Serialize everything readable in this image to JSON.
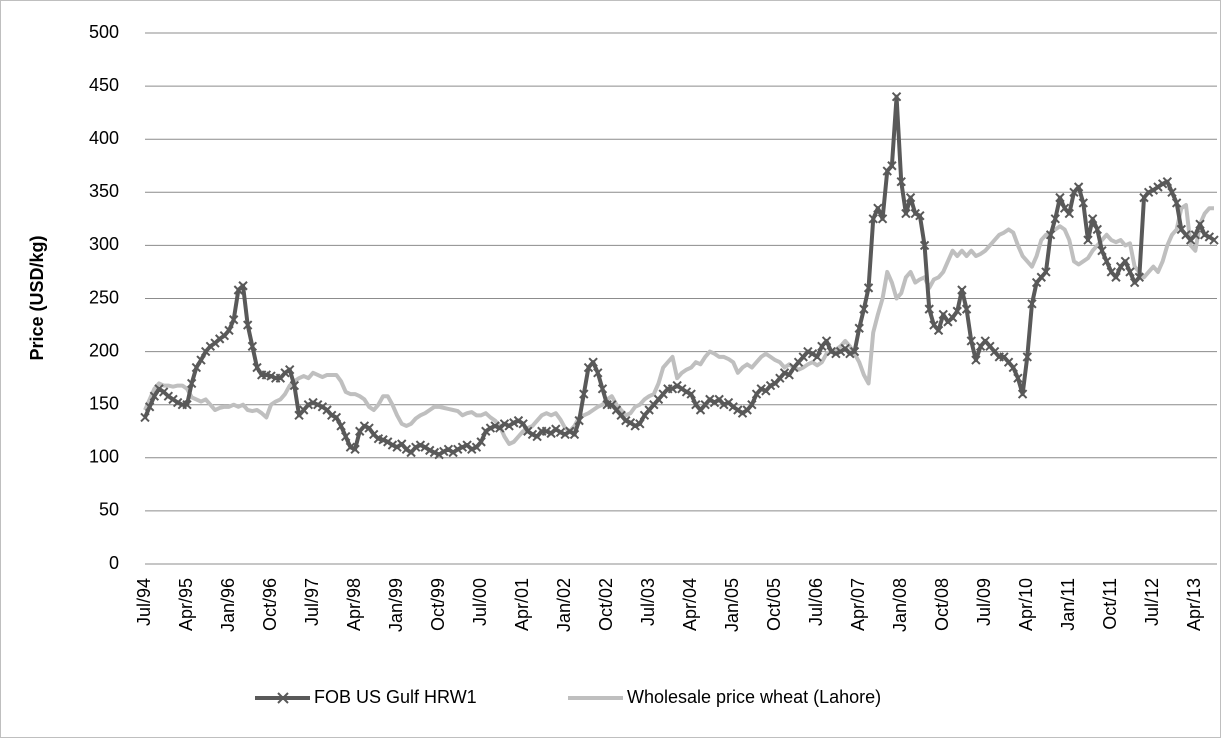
{
  "chart_data": {
    "type": "line",
    "y_label": "Price (USD/kg)",
    "categories": [
      "Jul/94",
      null,
      null,
      null,
      null,
      null,
      null,
      null,
      null,
      "Apr/95",
      null,
      null,
      null,
      null,
      null,
      null,
      null,
      null,
      "Jan/96",
      null,
      null,
      null,
      null,
      null,
      null,
      null,
      null,
      "Oct/96",
      null,
      null,
      null,
      null,
      null,
      null,
      null,
      null,
      "Jul/97",
      null,
      null,
      null,
      null,
      null,
      null,
      null,
      null,
      "Apr/98",
      null,
      null,
      null,
      null,
      null,
      null,
      null,
      null,
      "Jan/99",
      null,
      null,
      null,
      null,
      null,
      null,
      null,
      null,
      "Oct/99",
      null,
      null,
      null,
      null,
      null,
      null,
      null,
      null,
      "Jul/00",
      null,
      null,
      null,
      null,
      null,
      null,
      null,
      null,
      "Apr/01",
      null,
      null,
      null,
      null,
      null,
      null,
      null,
      null,
      "Jan/02",
      null,
      null,
      null,
      null,
      null,
      null,
      null,
      null,
      "Oct/02",
      null,
      null,
      null,
      null,
      null,
      null,
      null,
      null,
      "Jul/03",
      null,
      null,
      null,
      null,
      null,
      null,
      null,
      null,
      "Apr/04",
      null,
      null,
      null,
      null,
      null,
      null,
      null,
      null,
      "Jan/05",
      null,
      null,
      null,
      null,
      null,
      null,
      null,
      null,
      "Oct/05",
      null,
      null,
      null,
      null,
      null,
      null,
      null,
      null,
      "Jul/06",
      null,
      null,
      null,
      null,
      null,
      null,
      null,
      null,
      "Apr/07",
      null,
      null,
      null,
      null,
      null,
      null,
      null,
      null,
      "Jan/08",
      null,
      null,
      null,
      null,
      null,
      null,
      null,
      null,
      "Oct/08",
      null,
      null,
      null,
      null,
      null,
      null,
      null,
      null,
      "Jul/09",
      null,
      null,
      null,
      null,
      null,
      null,
      null,
      null,
      "Apr/10",
      null,
      null,
      null,
      null,
      null,
      null,
      null,
      null,
      "Jan/11",
      null,
      null,
      null,
      null,
      null,
      null,
      null,
      null,
      "Oct/11",
      null,
      null,
      null,
      null,
      null,
      null,
      null,
      null,
      "Jul/12",
      null,
      null,
      null,
      null,
      null,
      null,
      null,
      null,
      "Apr/13",
      null,
      null,
      null,
      null
    ],
    "series": [
      {
        "name": "FOB US Gulf HRW1",
        "color": "#595959",
        "marker": "x",
        "values": [
          138,
          148,
          158,
          165,
          162,
          158,
          155,
          152,
          150,
          150,
          170,
          185,
          192,
          200,
          205,
          208,
          212,
          215,
          220,
          230,
          258,
          262,
          225,
          205,
          185,
          178,
          178,
          177,
          175,
          175,
          180,
          183,
          168,
          140,
          145,
          150,
          152,
          150,
          148,
          145,
          140,
          138,
          130,
          120,
          110,
          108,
          125,
          130,
          128,
          122,
          118,
          117,
          115,
          112,
          110,
          113,
          108,
          105,
          110,
          112,
          110,
          107,
          105,
          103,
          106,
          108,
          105,
          108,
          110,
          112,
          108,
          110,
          115,
          125,
          128,
          130,
          128,
          132,
          130,
          133,
          135,
          132,
          125,
          122,
          120,
          125,
          125,
          123,
          127,
          124,
          122,
          125,
          122,
          135,
          160,
          185,
          190,
          180,
          165,
          150,
          150,
          145,
          140,
          135,
          133,
          130,
          132,
          140,
          145,
          150,
          155,
          160,
          165,
          165,
          168,
          165,
          162,
          160,
          150,
          145,
          150,
          155,
          152,
          155,
          150,
          152,
          148,
          145,
          142,
          145,
          150,
          160,
          165,
          163,
          168,
          170,
          175,
          180,
          178,
          185,
          190,
          195,
          200,
          198,
          195,
          205,
          210,
          200,
          198,
          200,
          203,
          198,
          200,
          222,
          240,
          260,
          325,
          335,
          325,
          370,
          375,
          440,
          360,
          330,
          345,
          330,
          328,
          300,
          240,
          225,
          220,
          235,
          228,
          232,
          238,
          258,
          240,
          210,
          192,
          205,
          210,
          205,
          200,
          195,
          195,
          190,
          185,
          175,
          160,
          195,
          245,
          265,
          270,
          275,
          310,
          325,
          345,
          335,
          330,
          350,
          355,
          340,
          305,
          325,
          315,
          295,
          285,
          275,
          270,
          280,
          285,
          275,
          265,
          270,
          345,
          350,
          352,
          355,
          358,
          360,
          350,
          340,
          315,
          310,
          305,
          310,
          320,
          310,
          308,
          305
        ]
      },
      {
        "name": "Wholesale price wheat (Lahore)",
        "color": "#bfbfbf",
        "values": [
          145,
          155,
          165,
          170,
          168,
          168,
          167,
          168,
          168,
          165,
          157,
          155,
          153,
          155,
          150,
          145,
          147,
          148,
          148,
          150,
          148,
          150,
          145,
          144,
          145,
          142,
          138,
          150,
          153,
          155,
          160,
          168,
          172,
          175,
          177,
          175,
          180,
          178,
          176,
          178,
          178,
          178,
          172,
          162,
          160,
          160,
          158,
          155,
          148,
          145,
          150,
          158,
          158,
          150,
          140,
          132,
          130,
          132,
          137,
          140,
          142,
          145,
          148,
          148,
          147,
          146,
          145,
          144,
          140,
          142,
          143,
          140,
          140,
          142,
          138,
          135,
          130,
          120,
          113,
          115,
          120,
          125,
          128,
          130,
          135,
          140,
          142,
          140,
          142,
          136,
          128,
          125,
          130,
          138,
          140,
          142,
          145,
          148,
          150,
          155,
          158,
          150,
          145,
          140,
          142,
          148,
          150,
          155,
          158,
          160,
          170,
          185,
          190,
          195,
          175,
          180,
          183,
          185,
          190,
          188,
          195,
          200,
          198,
          195,
          195,
          193,
          190,
          180,
          185,
          188,
          185,
          190,
          195,
          198,
          195,
          192,
          190,
          185,
          188,
          185,
          183,
          185,
          188,
          190,
          187,
          190,
          198,
          200,
          202,
          205,
          210,
          205,
          198,
          190,
          178,
          170,
          218,
          235,
          250,
          275,
          265,
          250,
          255,
          270,
          275,
          265,
          268,
          270,
          260,
          268,
          270,
          275,
          285,
          295,
          290,
          295,
          290,
          295,
          290,
          292,
          295,
          300,
          305,
          310,
          312,
          315,
          312,
          300,
          290,
          285,
          280,
          290,
          305,
          310,
          312,
          315,
          318,
          315,
          305,
          285,
          282,
          285,
          288,
          295,
          300,
          305,
          310,
          305,
          303,
          305,
          300,
          302,
          280,
          275,
          270,
          275,
          280,
          275,
          285,
          300,
          310,
          315,
          335,
          338,
          300,
          295,
          320,
          330,
          335,
          335
        ]
      }
    ],
    "ylim": [
      0,
      500
    ],
    "yticks": [
      0,
      50,
      100,
      150,
      200,
      250,
      300,
      350,
      400,
      450,
      500
    ],
    "grid": true,
    "legend": "bottom"
  }
}
